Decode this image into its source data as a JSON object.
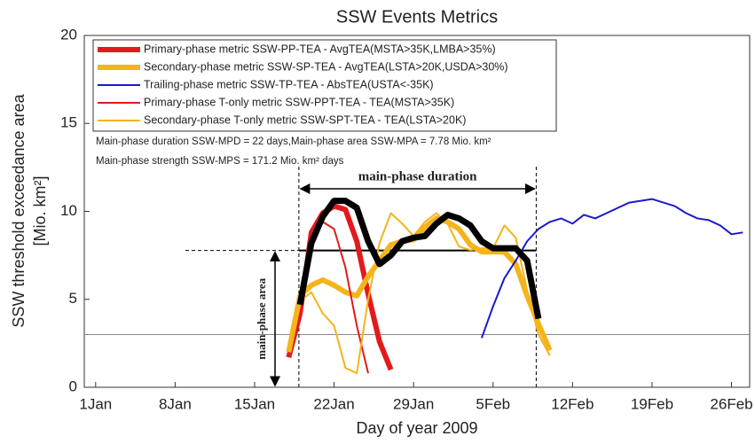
{
  "chart_data": {
    "type": "line",
    "title": "SSW Events Metrics",
    "xlabel": "Day of year 2009",
    "ylabel": [
      "SSW threshold exceedance area",
      "[Mio. km²]"
    ],
    "xlim": [
      0,
      58.6
    ],
    "ylim": [
      0,
      20
    ],
    "xticks": [
      {
        "value": 1,
        "label": "1Jan"
      },
      {
        "value": 8,
        "label": "8Jan"
      },
      {
        "value": 15,
        "label": "15Jan"
      },
      {
        "value": 22,
        "label": "22Jan"
      },
      {
        "value": 29,
        "label": "29Jan"
      },
      {
        "value": 36,
        "label": "5Feb"
      },
      {
        "value": 43,
        "label": "12Feb"
      },
      {
        "value": 50,
        "label": "19Feb"
      },
      {
        "value": 57,
        "label": "26Feb"
      }
    ],
    "yticks": [
      0,
      5,
      10,
      15,
      20
    ],
    "reference_line": 3,
    "notes": [
      "Main-phase duration SSW-MPD = 22 days,Main-phase area SSW-MPA = 7.78 Mio. km²",
      "Main-phase strength SSW-MPS = 171.2 Mio. km² days"
    ],
    "annotations": {
      "duration_label": "main-phase duration",
      "area_label": "main-phase area",
      "start": 18.9,
      "end": 39.8,
      "area_level": 7.78
    },
    "series": [
      {
        "name": "Primary-phase metric SSW-PP-TEA - AvgTEA(MSTA>35K,LMBA>35%)",
        "color": "#e31a1c",
        "width": 6,
        "x": [
          18,
          19,
          20,
          21,
          22,
          23,
          24,
          25,
          26,
          27
        ],
        "values": [
          1.7,
          4.2,
          8.8,
          9.9,
          10.3,
          10.1,
          8.3,
          5.3,
          2.6,
          1.0
        ]
      },
      {
        "name": "Secondary-phase metric SSW-SP-TEA - AvgTEA(LSTA>20K,USDA>30%)",
        "color": "#f4b41a",
        "width": 6,
        "x": [
          18,
          19,
          20,
          21,
          22,
          23,
          24,
          25,
          26,
          27,
          28,
          29,
          30,
          31,
          32,
          33,
          34,
          35,
          36,
          37,
          38,
          39,
          40,
          41
        ],
        "values": [
          2.0,
          5.2,
          5.8,
          6.1,
          5.8,
          5.4,
          5.2,
          6.3,
          7.2,
          8.1,
          8.3,
          8.4,
          9.1,
          9.6,
          9.4,
          9.0,
          8.1,
          7.7,
          7.7,
          7.7,
          7.0,
          5.2,
          3.6,
          2.1
        ]
      },
      {
        "name": "Trailing-phase metric SSW-TP-TEA - AbsTEA(USTA<-35K)",
        "color": "#1a1acc",
        "width": 2,
        "x": [
          35,
          36,
          37,
          38,
          39,
          40,
          41,
          42,
          43,
          44,
          45,
          46,
          47,
          48,
          49,
          50,
          51,
          52,
          53,
          54,
          55,
          56,
          57,
          58
        ],
        "values": [
          2.8,
          4.6,
          6.2,
          7.2,
          8.3,
          9.0,
          9.4,
          9.6,
          9.3,
          9.8,
          9.6,
          9.9,
          10.2,
          10.5,
          10.6,
          10.7,
          10.5,
          10.3,
          9.9,
          9.6,
          9.5,
          9.2,
          8.7,
          8.8
        ]
      },
      {
        "name": "Primary-phase T-only metric SSW-PPT-TEA - TEA(MSTA>35K)",
        "color": "#e31a1c",
        "width": 2,
        "x": [
          19,
          20,
          21,
          22,
          23,
          24,
          25
        ],
        "values": [
          4.8,
          8.3,
          9.4,
          9.0,
          6.8,
          3.5,
          0.8
        ]
      },
      {
        "name": "Secondary-phase T-only metric SSW-SPT-TEA - TEA(LSTA>20K)",
        "color": "#f4b41a",
        "width": 2,
        "x": [
          18,
          19,
          20,
          21,
          22,
          23,
          24,
          25,
          26,
          27,
          28,
          29,
          30,
          31,
          32,
          33,
          34,
          35,
          36,
          37,
          38,
          39,
          40,
          41
        ],
        "values": [
          2.2,
          4.9,
          5.4,
          4.2,
          3.5,
          1.1,
          0.8,
          5.0,
          8.2,
          9.9,
          9.3,
          8.6,
          9.4,
          9.9,
          9.3,
          8.0,
          7.8,
          7.9,
          7.9,
          9.2,
          8.5,
          5.5,
          3.0,
          1.8
        ]
      },
      {
        "color": "#000000",
        "width": 7,
        "x": [
          19,
          20,
          21,
          22,
          23,
          24,
          25,
          26,
          27,
          28,
          29,
          30,
          31,
          32,
          33,
          34,
          35,
          36,
          37,
          38,
          39,
          40
        ],
        "values": [
          4.7,
          8.2,
          9.7,
          10.6,
          10.6,
          10.2,
          8.3,
          7.0,
          7.5,
          8.3,
          8.5,
          8.6,
          9.3,
          9.8,
          9.6,
          9.2,
          8.3,
          7.9,
          7.9,
          7.9,
          7.2,
          3.9
        ]
      }
    ]
  }
}
